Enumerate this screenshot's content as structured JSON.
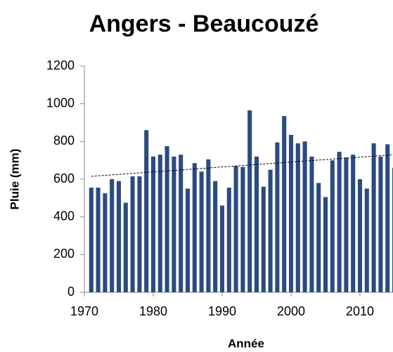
{
  "chart_data": {
    "type": "bar",
    "title": "Angers - Beaucouzé",
    "xlabel": "Année",
    "ylabel": "Pluie (mm)",
    "x": [
      1971,
      1972,
      1973,
      1974,
      1975,
      1976,
      1977,
      1978,
      1979,
      1980,
      1981,
      1982,
      1983,
      1984,
      1985,
      1986,
      1987,
      1988,
      1989,
      1990,
      1991,
      1992,
      1993,
      1994,
      1995,
      1996,
      1997,
      1998,
      1999,
      2000,
      2001,
      2002,
      2003,
      2004,
      2005,
      2006,
      2007,
      2008,
      2009,
      2010,
      2011,
      2012,
      2013,
      2014,
      2015
    ],
    "values": [
      555,
      555,
      525,
      600,
      590,
      475,
      615,
      615,
      860,
      720,
      730,
      775,
      720,
      730,
      550,
      685,
      640,
      705,
      590,
      460,
      555,
      670,
      665,
      965,
      720,
      560,
      650,
      795,
      935,
      835,
      790,
      800,
      720,
      580,
      505,
      700,
      745,
      715,
      730,
      600,
      550,
      790,
      720,
      785,
      660
    ],
    "color": "#2b4b80",
    "trendline": {
      "x": [
        1971,
        2015
      ],
      "values": [
        615,
        730
      ]
    },
    "xlim": [
      1970,
      2020
    ],
    "xticks": [
      1970,
      1980,
      1990,
      2000,
      2010
    ],
    "ylim": [
      0,
      1200
    ],
    "yticks": [
      0,
      200,
      400,
      600,
      800,
      1000,
      1200
    ],
    "grid": false
  }
}
